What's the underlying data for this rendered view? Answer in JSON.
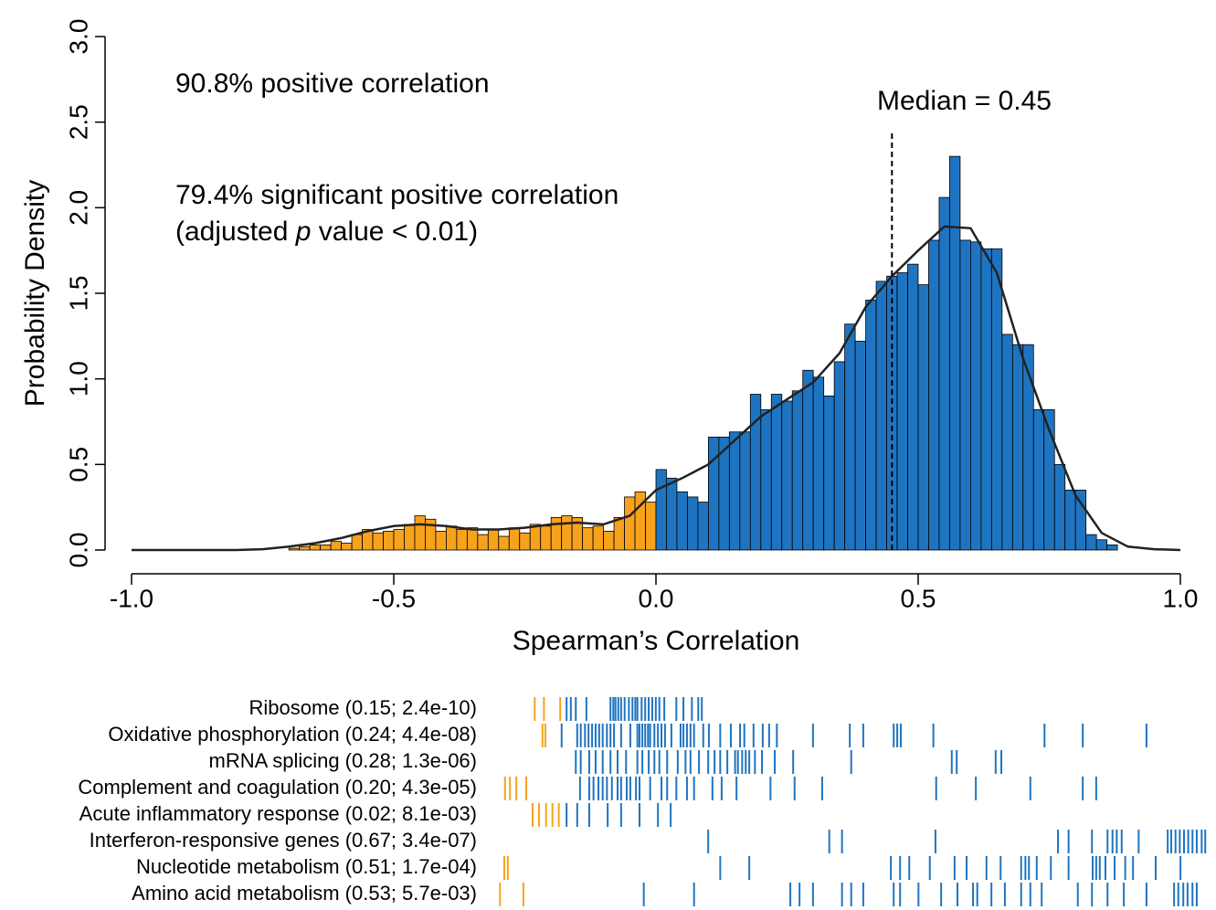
{
  "chart_data": [
    {
      "type": "histogram",
      "xlabel": "Spearman’s Correlation",
      "ylabel": "Probability Density",
      "annotations": [
        [
          "90.8% positive correlation"
        ],
        [
          "79.4% significant positive correlation"
        ],
        [
          "(adjusted ",
          "p",
          " value < 0.01)"
        ]
      ],
      "median": 0.45,
      "median_label": "Median = 0.45",
      "xlim": [
        -1.0,
        1.0
      ],
      "ylim": [
        0,
        3.0
      ],
      "xticks": [
        {
          "value": -1.0,
          "label": "-1.0"
        },
        -0.5,
        {
          "value": 0,
          "label": "0.0"
        },
        0.5,
        {
          "value": 1.0,
          "label": "1.0"
        }
      ],
      "yticks": [
        {
          "value": 0,
          "label": "0.0"
        },
        0.5,
        {
          "value": 1.0,
          "label": "1.0"
        },
        1.5,
        {
          "value": 2.0,
          "label": "2.0"
        },
        2.5,
        {
          "value": 3.0,
          "label": "3.0"
        }
      ],
      "series": [
        {
          "color": "#f7a21c",
          "bins": [
            -0.7,
            -0.68,
            -0.66,
            -0.64,
            -0.62,
            -0.6,
            -0.58,
            -0.56,
            -0.54,
            -0.52,
            -0.5,
            -0.48,
            -0.46,
            -0.44,
            -0.42,
            -0.4,
            -0.38,
            -0.36,
            -0.34,
            -0.32,
            -0.3,
            -0.28,
            -0.26,
            -0.24,
            -0.22,
            -0.2,
            -0.18,
            -0.16,
            -0.14,
            -0.12,
            -0.1,
            -0.08,
            -0.06,
            -0.04,
            -0.02,
            0
          ],
          "values": [
            0.01,
            0.02,
            0.03,
            0.03,
            0.05,
            0.04,
            0.09,
            0.12,
            0.1,
            0.11,
            0.12,
            0.15,
            0.2,
            0.18,
            0.11,
            0.14,
            0.12,
            0.13,
            0.09,
            0.12,
            0.08,
            0.13,
            0.1,
            0.15,
            0.14,
            0.19,
            0.2,
            0.19,
            0.13,
            0.14,
            0.11,
            0.19,
            0.31,
            0.34,
            0.28
          ]
        },
        {
          "color": "#1f74c1",
          "bins": [
            0,
            0.02,
            0.04,
            0.06,
            0.08,
            0.1,
            0.12,
            0.14,
            0.16,
            0.18,
            0.2,
            0.22,
            0.24,
            0.26,
            0.28,
            0.3,
            0.32,
            0.34,
            0.36,
            0.38,
            0.4,
            0.42,
            0.44,
            0.46,
            0.48,
            0.5,
            0.52,
            0.54,
            0.56,
            0.58,
            0.6,
            0.62,
            0.64,
            0.66,
            0.68,
            0.7,
            0.72,
            0.74,
            0.76,
            0.78,
            0.8,
            0.82,
            0.84,
            0.86,
            0.88
          ],
          "values": [
            0.47,
            0.42,
            0.34,
            0.31,
            0.28,
            0.66,
            0.66,
            0.69,
            0.69,
            0.91,
            0.82,
            0.91,
            0.87,
            0.93,
            1.05,
            1.01,
            0.9,
            1.1,
            1.32,
            1.22,
            1.46,
            1.57,
            1.6,
            1.62,
            1.67,
            1.55,
            1.81,
            2.06,
            2.3,
            1.81,
            1.8,
            1.76,
            1.76,
            1.26,
            1.2,
            1.2,
            0.82,
            0.82,
            0.5,
            0.35,
            0.35,
            0.09,
            0.06,
            0.03
          ]
        }
      ],
      "density": {
        "x": [
          -1.0,
          -0.95,
          -0.9,
          -0.85,
          -0.8,
          -0.75,
          -0.7,
          -0.65,
          -0.6,
          -0.55,
          -0.5,
          -0.45,
          -0.4,
          -0.35,
          -0.3,
          -0.25,
          -0.2,
          -0.15,
          -0.1,
          -0.05,
          0,
          0.05,
          0.1,
          0.15,
          0.2,
          0.25,
          0.3,
          0.35,
          0.4,
          0.45,
          0.5,
          0.55,
          0.6,
          0.65,
          0.7,
          0.75,
          0.8,
          0.85,
          0.9,
          0.95,
          1.0
        ],
        "y": [
          0,
          0,
          0,
          0,
          0,
          0.005,
          0.02,
          0.04,
          0.07,
          0.11,
          0.14,
          0.15,
          0.14,
          0.12,
          0.12,
          0.13,
          0.15,
          0.16,
          0.15,
          0.2,
          0.35,
          0.42,
          0.5,
          0.64,
          0.78,
          0.88,
          0.98,
          1.15,
          1.42,
          1.6,
          1.75,
          1.89,
          1.88,
          1.62,
          1.12,
          0.7,
          0.32,
          0.1,
          0.02,
          0.005,
          0
        ]
      }
    },
    {
      "type": "barcode",
      "xlim": [
        0,
        100
      ],
      "colors": {
        "negative": "#f7a21c",
        "positive": "#1f74c1"
      },
      "rows": [
        {
          "name": "Ribosome (0.15; 2.4e-10)",
          "negative": [
            5.2,
            6.5,
            8.8
          ],
          "positive": [
            9.7,
            10.3,
            11.0,
            12.5,
            15.9,
            16.3,
            16.6,
            17.0,
            17.4,
            17.9,
            18.5,
            19.0,
            19.4,
            19.7,
            20.3,
            20.8,
            21.3,
            21.8,
            22.3,
            22.8,
            23.5,
            25.2,
            26.2,
            27.4,
            28.3,
            28.8
          ]
        },
        {
          "name": "Oxidative phosphorylation (0.24; 4.4e-08)",
          "negative": [
            6.3,
            6.7
          ],
          "positive": [
            9.0,
            11.2,
            11.7,
            12.3,
            12.8,
            13.3,
            13.8,
            14.3,
            14.8,
            15.4,
            15.9,
            16.4,
            17.4,
            18.7,
            19.7,
            20.0,
            20.4,
            20.8,
            21.2,
            21.5,
            22.1,
            22.6,
            23.1,
            23.6,
            24.5,
            25.8,
            26.2,
            26.7,
            27.2,
            27.7,
            29.0,
            29.8,
            31.4,
            32.9,
            34.2,
            34.8,
            36.1,
            37.4,
            38.3,
            39.4,
            44.5,
            49.7,
            51.6,
            55.9,
            56.4,
            56.9,
            61.5,
            77.2,
            82.6,
            91.6
          ]
        },
        {
          "name": "mRNA splicing (0.28; 1.3e-06)",
          "negative": [],
          "positive": [
            11.0,
            11.7,
            12.9,
            13.8,
            14.8,
            15.9,
            16.9,
            18.1,
            19.7,
            20.4,
            21.3,
            22.1,
            22.8,
            23.9,
            25.4,
            26.5,
            27.2,
            28.4,
            29.7,
            30.6,
            31.4,
            32.4,
            33.5,
            33.9,
            34.5,
            35.0,
            35.5,
            36.3,
            37.3,
            39.1,
            41.7,
            49.9,
            64.1,
            64.8,
            70.3,
            71.1
          ]
        },
        {
          "name": "Complement and coagulation (0.20; 4.3e-05)",
          "negative": [
            1.0,
            1.7,
            2.6,
            4.0
          ],
          "positive": [
            11.6,
            12.9,
            13.5,
            14.2,
            14.8,
            15.4,
            16.1,
            16.9,
            17.4,
            18.2,
            18.7,
            19.5,
            20.0,
            21.5,
            23.1,
            23.9,
            25.2,
            26.7,
            27.7,
            30.3,
            31.6,
            33.7,
            38.5,
            41.9,
            45.8,
            61.9,
            67.5,
            75.2,
            82.6,
            84.5
          ]
        },
        {
          "name": "Acute inflammatory response (0.02; 8.1e-03)",
          "negative": [
            4.9,
            5.8,
            6.8,
            7.7,
            8.6
          ],
          "positive": [
            9.7,
            11.2,
            12.9,
            15.5,
            17.4,
            20.0,
            22.6,
            24.4
          ]
        },
        {
          "name": "Interferon-responsive genes (0.67; 3.4e-07)",
          "negative": [],
          "positive": [
            29.7,
            46.8,
            48.6,
            61.8,
            79.1,
            80.6,
            83.9,
            86.1,
            86.8,
            87.4,
            88.1,
            90.5,
            94.6,
            95.1,
            95.7,
            96.3,
            96.9,
            97.5,
            98.1,
            98.7,
            99.4,
            99.9
          ]
        },
        {
          "name": "Nucleotide metabolism (0.51; 1.7e-04)",
          "negative": [
            0.9,
            1.4
          ],
          "positive": [
            31.4,
            35.5,
            55.5,
            56.8,
            58.1,
            61.0,
            64.5,
            66.2,
            69.0,
            71.0,
            73.9,
            74.5,
            75.0,
            76.1,
            78.1,
            80.6,
            84.0,
            84.5,
            85.0,
            85.8,
            87.1,
            88.6,
            89.7,
            92.9,
            96.4
          ]
        },
        {
          "name": "Amino acid metabolism (0.53; 5.7e-03)",
          "negative": [
            0.3,
            3.6
          ],
          "positive": [
            20.6,
            27.7,
            41.3,
            42.6,
            44.5,
            48.6,
            49.9,
            51.6,
            55.9,
            56.8,
            59.4,
            62.6,
            64.9,
            67.1,
            67.7,
            69.7,
            71.6,
            73.9,
            75.2,
            76.8,
            81.9,
            83.9,
            86.1,
            88.4,
            91.6,
            95.5,
            96.1,
            96.8,
            97.4,
            98.1,
            98.7
          ]
        }
      ]
    }
  ]
}
